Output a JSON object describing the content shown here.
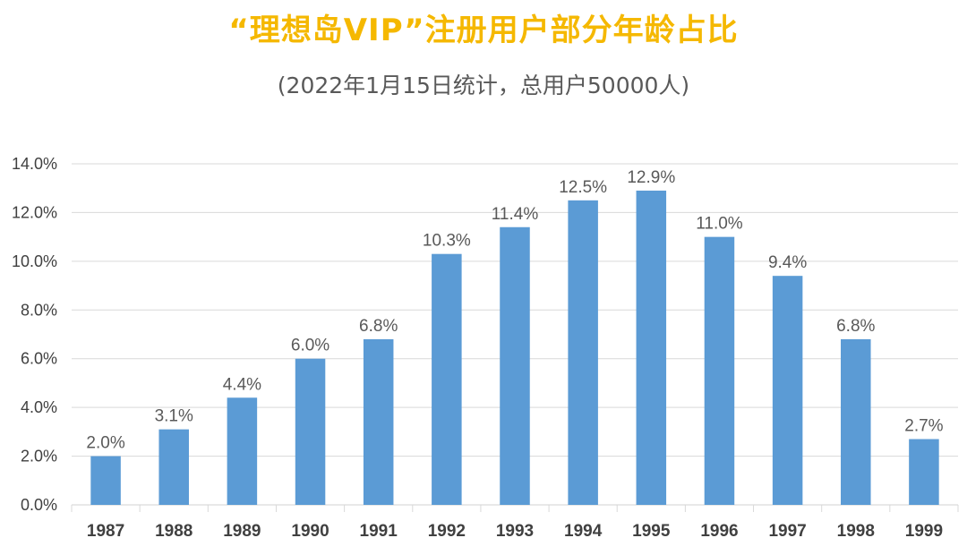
{
  "chart_data": {
    "type": "bar",
    "title": "“理想岛VIP”注册用户部分年龄占比",
    "subtitle": "(2022年1月15日统计，总用户50000人)",
    "categories": [
      "1987",
      "1988",
      "1989",
      "1990",
      "1991",
      "1992",
      "1993",
      "1994",
      "1995",
      "1996",
      "1997",
      "1998",
      "1999"
    ],
    "values": [
      2.0,
      3.1,
      4.4,
      6.0,
      6.8,
      10.3,
      11.4,
      12.5,
      12.9,
      11.0,
      9.4,
      6.8,
      2.7
    ],
    "data_labels": [
      "2.0%",
      "3.1%",
      "4.4%",
      "6.0%",
      "6.8%",
      "10.3%",
      "11.4%",
      "12.5%",
      "12.9%",
      "11.0%",
      "9.4%",
      "6.8%",
      "2.7%"
    ],
    "y_ticks": [
      "0.0%",
      "2.0%",
      "4.0%",
      "6.0%",
      "8.0%",
      "10.0%",
      "12.0%",
      "14.0%"
    ],
    "ylim": [
      0,
      14
    ],
    "grid": true,
    "legend": "none",
    "colors": {
      "bar": "#5B9BD5",
      "title": "#F5B800",
      "grid": "#D9D9D9"
    }
  }
}
